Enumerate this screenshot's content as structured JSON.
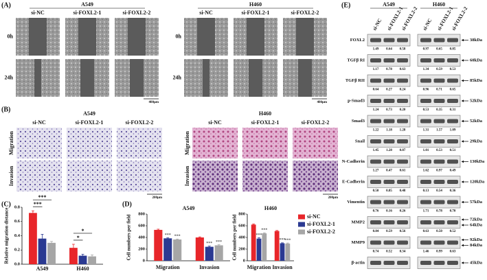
{
  "panel_labels": [
    "(A)",
    "(B)",
    "(C)",
    "(D)",
    "(E)"
  ],
  "panel_a": {
    "groups": [
      {
        "title": "A549",
        "columns": [
          "si-NC",
          "si-FOXL2-1",
          "si-FOXL2-2"
        ]
      },
      {
        "title": "H460",
        "columns": [
          "si-NC",
          "si-FOXL2-1",
          "si-FOXL2-2"
        ]
      }
    ],
    "rows": [
      "0h",
      "24h"
    ],
    "scale_bar": "400μm"
  },
  "panel_b": {
    "groups": [
      {
        "title": "A549",
        "columns": [
          "si-NC",
          "si-FOXL2-1",
          "si-FOXL2-2"
        ]
      },
      {
        "title": "H460",
        "columns": [
          "si-NC",
          "si-FOXL2-1",
          "si-FOXL2-2"
        ]
      }
    ],
    "rows": [
      "Migration",
      "Invasion"
    ],
    "scale_bar": "200μm"
  },
  "chart_data": [
    {
      "type": "bar",
      "y_label": "Relative migration distance",
      "categories": [
        "A549",
        "H460"
      ],
      "series": [
        {
          "name": "si-NC",
          "color": "#e8262a",
          "values": [
            0.72,
            0.23
          ],
          "errors": [
            0.03,
            0.05
          ]
        },
        {
          "name": "si-FOXL2-1",
          "color": "#2b3a92",
          "values": [
            0.36,
            0.12
          ],
          "errors": [
            0.06,
            0.02
          ]
        },
        {
          "name": "si-FOXL2-2",
          "color": "#a6a6a6",
          "values": [
            0.3,
            0.11
          ],
          "errors": [
            0.02,
            0.02
          ]
        }
      ],
      "ylim": [
        0,
        0.8
      ],
      "yticks": [
        {
          "value": 0,
          "label": "0.0"
        },
        {
          "value": 0.2,
          "label": "0.2"
        },
        {
          "value": 0.4,
          "label": "0.4"
        },
        {
          "value": 0.6,
          "label": "0.6"
        },
        {
          "value": 0.8,
          "label": "0.8"
        }
      ],
      "annotations": [
        {
          "text": "***",
          "category": 0,
          "series": [
            0,
            2
          ]
        },
        {
          "text": "***",
          "category": 0,
          "series": [
            0,
            1
          ]
        },
        {
          "text": "*",
          "category": 1,
          "series": [
            0,
            2
          ]
        },
        {
          "text": "*",
          "category": 1,
          "series": [
            0,
            1
          ]
        }
      ]
    },
    {
      "type": "bar",
      "title": "A549",
      "y_label": "Cell numbers per field",
      "categories": [
        "Migration",
        "Invasion"
      ],
      "series": [
        {
          "name": "si-NC",
          "color": "#e8262a",
          "values": [
            530,
            400
          ],
          "errors": [
            12,
            10
          ]
        },
        {
          "name": "si-FOXL2-1",
          "color": "#2b3a92",
          "values": [
            385,
            240
          ],
          "errors": [
            10,
            12
          ],
          "labels": [
            "***",
            "***"
          ]
        },
        {
          "name": "si-FOXL2-2",
          "color": "#a6a6a6",
          "values": [
            365,
            265
          ],
          "errors": [
            8,
            10
          ],
          "labels": [
            "***",
            "***"
          ]
        }
      ],
      "ylim": [
        0,
        800
      ],
      "yticks": [
        0,
        200,
        400,
        600,
        800
      ]
    },
    {
      "type": "bar",
      "title": "H460",
      "y_label": "Cell numbers per field",
      "categories": [
        "Migration",
        "Invasion"
      ],
      "series": [
        {
          "name": "si-NC",
          "color": "#e8262a",
          "values": [
            620,
            510
          ],
          "errors": [
            12,
            10
          ]
        },
        {
          "name": "si-FOXL2-1",
          "color": "#2b3a92",
          "values": [
            380,
            300
          ],
          "errors": [
            15,
            8
          ],
          "labels": [
            "***",
            "***"
          ]
        },
        {
          "name": "si-FOXL2-2",
          "color": "#a6a6a6",
          "values": [
            470,
            295
          ],
          "errors": [
            10,
            10
          ],
          "labels": [
            "***",
            "***"
          ]
        }
      ],
      "ylim": [
        0,
        800
      ],
      "yticks": [
        0,
        200,
        400,
        600,
        800
      ],
      "legend": "right"
    }
  ],
  "panel_e": {
    "groups": [
      {
        "title": "A549",
        "columns": [
          "si-NC",
          "si-FOXL2-1",
          "si-FOXL2-2"
        ]
      },
      {
        "title": "H460",
        "columns": [
          "si-NC",
          "si-FOXL2-1",
          "si-FOXL2-2"
        ]
      }
    ],
    "rows": [
      {
        "protein": "FOXL2",
        "values": [
          [
            "1.49",
            "0.64",
            "0.58"
          ],
          [
            "0.97",
            "0.65",
            "0.85"
          ]
        ],
        "sizes": [
          "38kDa"
        ]
      },
      {
        "protein": "TGFβ RI",
        "values": [
          [
            "1.17",
            "0.78",
            "0.63"
          ],
          [
            "1.34",
            "0.59",
            "0.53"
          ]
        ],
        "sizes": [
          "60kDa"
        ]
      },
      {
        "protein": "TGFβ RII",
        "values": [
          [
            "0.64",
            "0.27",
            "0.24"
          ],
          [
            "0.96",
            "0.71",
            "0.65"
          ]
        ],
        "sizes": [
          "85kDa"
        ]
      },
      {
        "protein": "p-Smad3",
        "values": [
          [
            "1.24",
            "0.73",
            "0.20"
          ],
          [
            "0.53",
            "0.35",
            "0.31"
          ]
        ],
        "sizes": [
          "52kDa"
        ]
      },
      {
        "protein": "Smad3",
        "values": [
          [
            "1.22",
            "1.18",
            "1.28"
          ],
          [
            "1.31",
            "1.57",
            "1.09"
          ]
        ],
        "sizes": [
          "52kDa"
        ]
      },
      {
        "protein": "Snail",
        "values": [
          [
            "1.45",
            "1.28",
            "0.87"
          ],
          [
            "1.01",
            "0.53",
            "0.51"
          ]
        ],
        "sizes": [
          "29kDa"
        ]
      },
      {
        "protein": "N-Cadherin",
        "values": [
          [
            "1.27",
            "0.47",
            "0.61"
          ],
          [
            "1.62",
            "0.97",
            "0.49"
          ]
        ],
        "sizes": [
          "130kDa"
        ]
      },
      {
        "protein": "E-Cadherin",
        "values": [
          [
            "0.50",
            "0.85",
            "0.48"
          ],
          [
            "0.13",
            "0.54",
            "0.36"
          ]
        ],
        "sizes": [
          "120kDa"
        ]
      },
      {
        "protein": "Vimentin",
        "values": [
          [
            "0.76",
            "0.16",
            "0.26"
          ],
          [
            "1.71",
            "0.78",
            "0.70"
          ]
        ],
        "sizes": [
          "57kDa"
        ]
      },
      {
        "protein": "MMP2",
        "values": [
          [
            "0.84",
            "0.59",
            "0.56"
          ],
          [
            "0.63",
            "0.50",
            "0.52"
          ]
        ],
        "sizes": [
          "72kDa",
          "64kDa"
        ]
      },
      {
        "protein": "MMP9",
        "values": [
          [
            "0.74",
            "0.52",
            "0.34"
          ],
          [
            "1.46",
            "0.99",
            "0.63"
          ]
        ],
        "sizes": [
          "92kDa",
          "84kDa"
        ]
      },
      {
        "protein": "β-actin",
        "sizes": [
          "45kDa"
        ]
      }
    ]
  }
}
